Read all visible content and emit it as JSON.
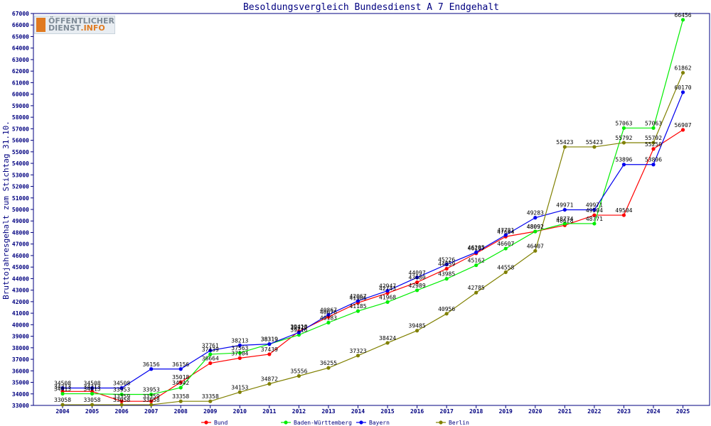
{
  "chart_data": {
    "type": "line",
    "title": "Besoldungsvergleich Bundesdienst A 7 Endgehalt",
    "ylabel": "Bruttojahresgehalt zum Stichtag 31.10.",
    "xlabel": "",
    "ylim": [
      33000,
      67000
    ],
    "ytick_step": 1000,
    "grid": false,
    "legend_position": "bottom",
    "categories": [
      "2004",
      "2005",
      "2006",
      "2007",
      "2008",
      "2009",
      "2010",
      "2011",
      "2012",
      "2013",
      "2014",
      "2015",
      "2016",
      "2017",
      "2018",
      "2019",
      "2020",
      "2021",
      "2022",
      "2023",
      "2024",
      "2025"
    ],
    "series": [
      {
        "name": "Bund",
        "color": "#ff0000",
        "values": [
          34213,
          34213,
          33359,
          33359,
          35018,
          36664,
          37104,
          37439,
          39418,
          40676,
          41906,
          42743,
          43680,
          44859,
          46197,
          47644,
          48092,
          48628,
          49504,
          49504,
          55250,
          56907
        ]
      },
      {
        "name": "Baden-Württemberg",
        "color": "#00ee00",
        "values": [
          34013,
          34013,
          33953,
          33953,
          34542,
          37439,
          37563,
          38319,
          39116,
          40183,
          41185,
          41968,
          42989,
          43985,
          45162,
          46607,
          48092,
          48774,
          48771,
          57063,
          57063,
          66456
        ]
      },
      {
        "name": "Bayern",
        "color": "#0000ee",
        "values": [
          34508,
          34508,
          34508,
          36156,
          36156,
          37761,
          38213,
          38319,
          39329,
          40867,
          42067,
          42947,
          44097,
          45226,
          46285,
          47781,
          49283,
          49971,
          49971,
          53896,
          53896,
          60170
        ]
      },
      {
        "name": "Berlin",
        "color": "#808000",
        "values": [
          33058,
          33058,
          33058,
          33058,
          33358,
          33358,
          34153,
          34872,
          35556,
          36255,
          37323,
          38424,
          39485,
          40956,
          42785,
          44558,
          46407,
          55423,
          55423,
          55792,
          55792,
          61862
        ]
      }
    ]
  },
  "logo": {
    "line1": "ÖFFENTLICHER",
    "line2a": "DIENST",
    "line2b": ".INFO"
  }
}
